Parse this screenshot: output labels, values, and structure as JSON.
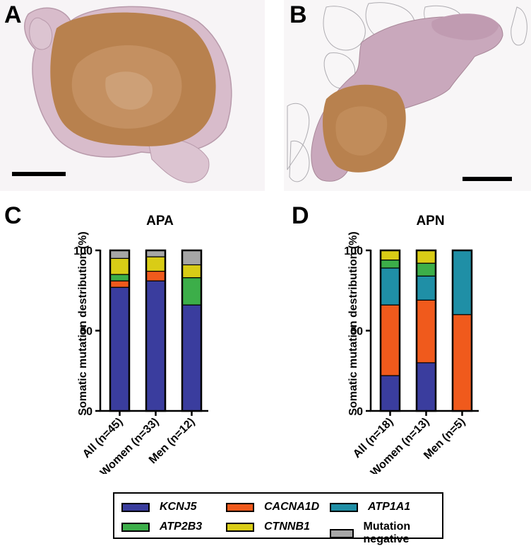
{
  "panels": {
    "a_letter": "A",
    "b_letter": "B",
    "c_letter": "C",
    "d_letter": "D"
  },
  "colors": {
    "KCNJ5": "#3a3d9e",
    "CACNA1D": "#f05a1c",
    "ATP1A1": "#1f8fa6",
    "ATP2B3": "#3cae49",
    "CTNNB1": "#d9cc16",
    "Mutation negative": "#a6a6a6",
    "tissue_brown": "#b8814e",
    "tissue_pink": "#c9a8bc"
  },
  "legend": {
    "items": [
      {
        "label": "KCNJ5",
        "italic": true,
        "color": "#3a3d9e"
      },
      {
        "label": "CACNA1D",
        "italic": true,
        "color": "#f05a1c"
      },
      {
        "label": "ATP1A1",
        "italic": true,
        "color": "#1f8fa6"
      },
      {
        "label": "ATP2B3",
        "italic": true,
        "color": "#3cae49"
      },
      {
        "label": "CTNNB1",
        "italic": true,
        "color": "#d9cc16"
      },
      {
        "label": "Mutation negative",
        "italic": false,
        "color": "#a6a6a6"
      }
    ]
  },
  "chart_data": [
    {
      "type": "bar",
      "stacked": true,
      "title": "APA",
      "ylabel": "Somatic mutation destribution (%)",
      "xlabel": "",
      "ylim": [
        0,
        100
      ],
      "yticks": [
        0,
        50,
        100
      ],
      "categories": [
        "All (n=45)",
        "Women (n=33)",
        "Men (n=12)"
      ],
      "series": [
        {
          "name": "KCNJ5",
          "values": [
            77,
            81,
            66
          ]
        },
        {
          "name": "CACNA1D",
          "values": [
            4,
            6,
            0
          ]
        },
        {
          "name": "ATP1A1",
          "values": [
            0,
            0,
            0
          ]
        },
        {
          "name": "ATP2B3",
          "values": [
            4,
            0,
            17
          ]
        },
        {
          "name": "CTNNB1",
          "values": [
            10,
            9,
            8
          ]
        },
        {
          "name": "Mutation negative",
          "values": [
            5,
            4,
            9
          ]
        }
      ]
    },
    {
      "type": "bar",
      "stacked": true,
      "title": "APN",
      "ylabel": "Somatic mutation destribution (%)",
      "xlabel": "",
      "ylim": [
        0,
        100
      ],
      "yticks": [
        0,
        50,
        100
      ],
      "categories": [
        "All (n=18)",
        "Women (n=13)",
        "Men (n=5)"
      ],
      "series": [
        {
          "name": "KCNJ5",
          "values": [
            22,
            30,
            0
          ]
        },
        {
          "name": "CACNA1D",
          "values": [
            44,
            39,
            60
          ]
        },
        {
          "name": "ATP1A1",
          "values": [
            23,
            15,
            40
          ]
        },
        {
          "name": "ATP2B3",
          "values": [
            5,
            8,
            0
          ]
        },
        {
          "name": "CTNNB1",
          "values": [
            6,
            8,
            0
          ]
        },
        {
          "name": "Mutation negative",
          "values": [
            0,
            0,
            0
          ]
        }
      ]
    }
  ]
}
